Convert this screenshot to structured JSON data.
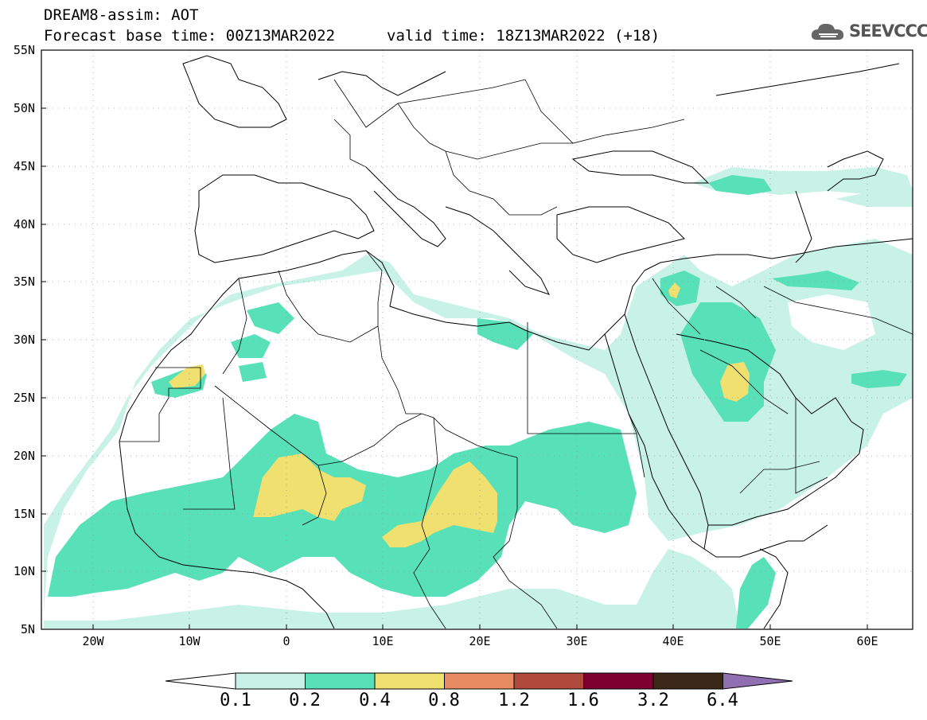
{
  "header": {
    "line1": "DREAM8-assim: AOT",
    "line2": "Forecast base time: 00Z13MAR2022",
    "valid": "valid time: 18Z13MAR2022 (+18)"
  },
  "logo": {
    "text": "SEEVCCC",
    "icon": "cloud-icon"
  },
  "axes": {
    "lat_labels": [
      "55N",
      "50N",
      "45N",
      "40N",
      "35N",
      "30N",
      "25N",
      "20N",
      "15N",
      "10N",
      "5N"
    ],
    "lon_labels": [
      "20W",
      "10W",
      "0",
      "10E",
      "20E",
      "30E",
      "40E",
      "50E",
      "60E"
    ],
    "lat_range": [
      5,
      55
    ],
    "lon_range": [
      -25,
      65
    ]
  },
  "colorbar": {
    "labels": [
      "0.1",
      "0.2",
      "0.4",
      "0.8",
      "1.2",
      "1.6",
      "3.2",
      "6.4"
    ],
    "colors": [
      "#ffffff",
      "#c8f2e6",
      "#58e0b8",
      "#f0e070",
      "#e88c64",
      "#b04a3c",
      "#7c0030",
      "#3c2818",
      "#9070b0"
    ]
  },
  "colors": {
    "aot_01_02": "#c8f2e6",
    "aot_02_04": "#58e0b8",
    "aot_04_08": "#f0e070"
  }
}
